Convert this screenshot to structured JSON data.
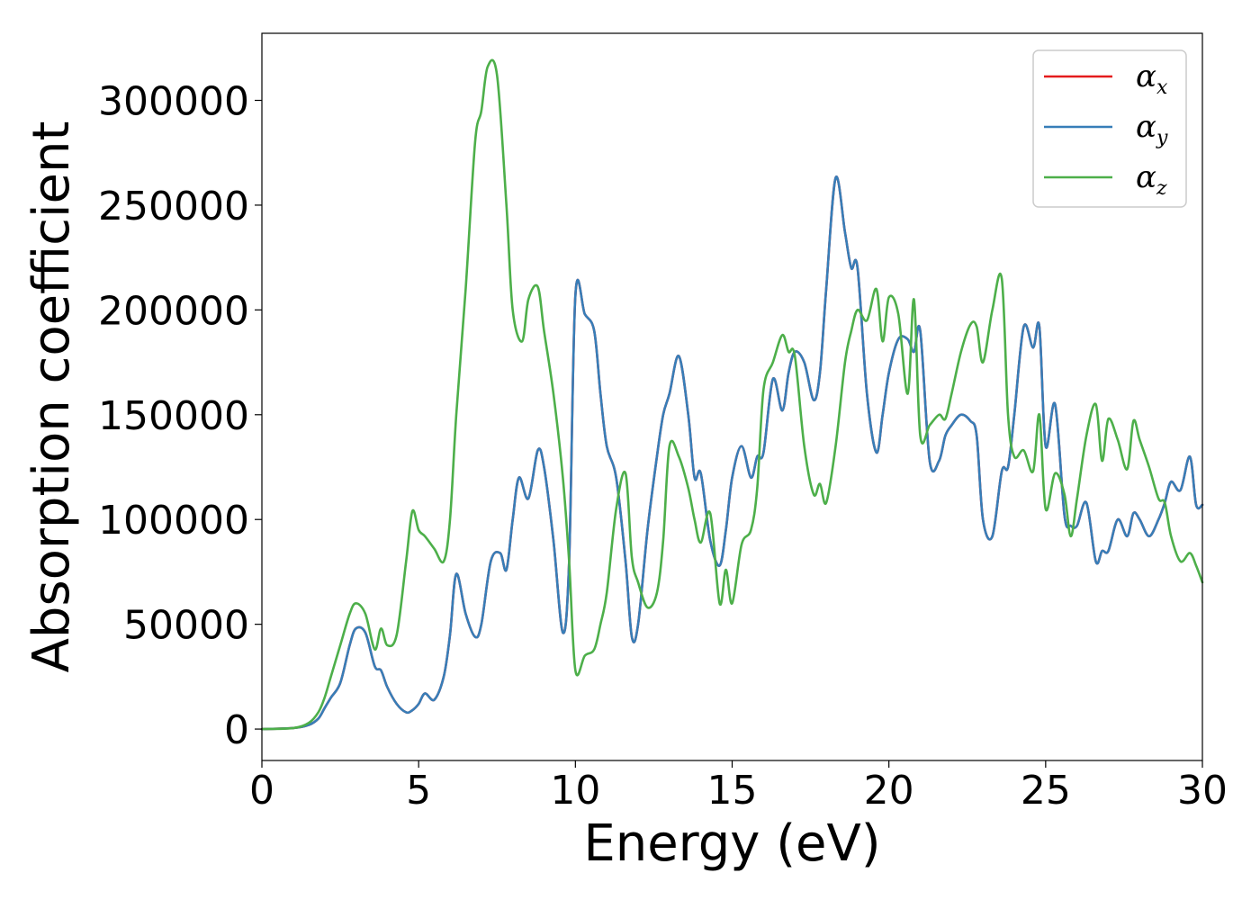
{
  "chart_data": {
    "type": "line",
    "xlabel": "Energy (eV)",
    "ylabel": "Absorption coefficient",
    "xlim": [
      0,
      30
    ],
    "ylim": [
      -15000,
      332000
    ],
    "xticks": [
      0,
      5,
      10,
      15,
      20,
      25,
      30
    ],
    "yticks": [
      0,
      50000,
      100000,
      150000,
      200000,
      250000,
      300000
    ],
    "xtick_labels": [
      "0",
      "5",
      "10",
      "15",
      "20",
      "25",
      "30"
    ],
    "ytick_labels": [
      "0",
      "50000",
      "100000",
      "150000",
      "200000",
      "250000",
      "300000"
    ],
    "grid": false,
    "legend_position": "top-right",
    "series": [
      {
        "name": "α",
        "subscript": "x",
        "color": "#e41a1c",
        "x": [
          0,
          1,
          1.5,
          1.8,
          2.0,
          2.2,
          2.5,
          2.8,
          3.0,
          3.3,
          3.6,
          3.8,
          4.0,
          4.3,
          4.6,
          4.8,
          5.0,
          5.2,
          5.5,
          5.8,
          6.0,
          6.2,
          6.5,
          6.8,
          7.0,
          7.3,
          7.6,
          7.8,
          8.0,
          8.2,
          8.5,
          8.8,
          9.0,
          9.3,
          9.6,
          9.8,
          10.0,
          10.3,
          10.6,
          10.8,
          11.0,
          11.3,
          11.6,
          11.8,
          12.0,
          12.3,
          12.6,
          12.8,
          13.0,
          13.3,
          13.6,
          13.8,
          14.0,
          14.3,
          14.6,
          14.8,
          15.0,
          15.3,
          15.6,
          15.8,
          16.0,
          16.3,
          16.6,
          16.8,
          17.0,
          17.3,
          17.6,
          17.8,
          18.0,
          18.3,
          18.6,
          18.8,
          19.0,
          19.3,
          19.6,
          19.8,
          20.0,
          20.3,
          20.6,
          20.8,
          21.0,
          21.3,
          21.6,
          21.8,
          22.0,
          22.3,
          22.6,
          22.8,
          23.0,
          23.3,
          23.6,
          23.8,
          24.0,
          24.3,
          24.6,
          24.8,
          25.0,
          25.3,
          25.6,
          25.8,
          26.0,
          26.3,
          26.6,
          26.8,
          27.0,
          27.3,
          27.6,
          27.8,
          28.0,
          28.3,
          28.6,
          28.8,
          29.0,
          29.3,
          29.6,
          29.8,
          30.0
        ],
        "y": [
          0,
          500,
          2000,
          5000,
          10000,
          15000,
          22000,
          40000,
          48000,
          46000,
          30000,
          28000,
          20000,
          12000,
          8000,
          9000,
          12000,
          17000,
          14000,
          25000,
          45000,
          74000,
          55000,
          44000,
          50000,
          80000,
          84000,
          76000,
          100000,
          120000,
          110000,
          133000,
          125000,
          90000,
          46000,
          80000,
          207000,
          198000,
          190000,
          160000,
          135000,
          120000,
          80000,
          44000,
          50000,
          95000,
          130000,
          150000,
          160000,
          178000,
          150000,
          120000,
          122000,
          90000,
          78000,
          95000,
          120000,
          135000,
          120000,
          130000,
          132000,
          167000,
          152000,
          170000,
          180000,
          175000,
          157000,
          170000,
          210000,
          263000,
          237000,
          220000,
          220000,
          160000,
          132000,
          150000,
          170000,
          186000,
          186000,
          180000,
          190000,
          128000,
          128000,
          140000,
          145000,
          150000,
          147000,
          140000,
          100000,
          92000,
          123000,
          125000,
          150000,
          192000,
          182000,
          192000,
          135000,
          155000,
          102000,
          97000,
          97000,
          108000,
          80000,
          85000,
          85000,
          100000,
          92000,
          103000,
          100000,
          92000,
          100000,
          108000,
          118000,
          114000,
          130000,
          107000,
          107000
        ]
      },
      {
        "name": "α",
        "subscript": "y",
        "color": "#377eb8",
        "x": [
          0,
          1,
          1.5,
          1.8,
          2.0,
          2.2,
          2.5,
          2.8,
          3.0,
          3.3,
          3.6,
          3.8,
          4.0,
          4.3,
          4.6,
          4.8,
          5.0,
          5.2,
          5.5,
          5.8,
          6.0,
          6.2,
          6.5,
          6.8,
          7.0,
          7.3,
          7.6,
          7.8,
          8.0,
          8.2,
          8.5,
          8.8,
          9.0,
          9.3,
          9.6,
          9.8,
          10.0,
          10.3,
          10.6,
          10.8,
          11.0,
          11.3,
          11.6,
          11.8,
          12.0,
          12.3,
          12.6,
          12.8,
          13.0,
          13.3,
          13.6,
          13.8,
          14.0,
          14.3,
          14.6,
          14.8,
          15.0,
          15.3,
          15.6,
          15.8,
          16.0,
          16.3,
          16.6,
          16.8,
          17.0,
          17.3,
          17.6,
          17.8,
          18.0,
          18.3,
          18.6,
          18.8,
          19.0,
          19.3,
          19.6,
          19.8,
          20.0,
          20.3,
          20.6,
          20.8,
          21.0,
          21.3,
          21.6,
          21.8,
          22.0,
          22.3,
          22.6,
          22.8,
          23.0,
          23.3,
          23.6,
          23.8,
          24.0,
          24.3,
          24.6,
          24.8,
          25.0,
          25.3,
          25.6,
          25.8,
          26.0,
          26.3,
          26.6,
          26.8,
          27.0,
          27.3,
          27.6,
          27.8,
          28.0,
          28.3,
          28.6,
          28.8,
          29.0,
          29.3,
          29.6,
          29.8,
          30.0
        ],
        "y": [
          0,
          500,
          2000,
          5000,
          10000,
          15000,
          22000,
          40000,
          48000,
          46000,
          30000,
          28000,
          20000,
          12000,
          8000,
          9000,
          12000,
          17000,
          14000,
          25000,
          45000,
          74000,
          55000,
          44000,
          50000,
          80000,
          84000,
          76000,
          100000,
          120000,
          110000,
          133000,
          125000,
          90000,
          46000,
          80000,
          207000,
          198000,
          190000,
          160000,
          135000,
          120000,
          80000,
          44000,
          50000,
          95000,
          130000,
          150000,
          160000,
          178000,
          150000,
          120000,
          122000,
          90000,
          78000,
          95000,
          120000,
          135000,
          120000,
          130000,
          132000,
          167000,
          152000,
          170000,
          180000,
          175000,
          157000,
          170000,
          210000,
          263000,
          237000,
          220000,
          220000,
          160000,
          132000,
          150000,
          170000,
          186000,
          186000,
          180000,
          190000,
          128000,
          128000,
          140000,
          145000,
          150000,
          147000,
          140000,
          100000,
          92000,
          123000,
          125000,
          150000,
          192000,
          182000,
          192000,
          135000,
          155000,
          102000,
          97000,
          97000,
          108000,
          80000,
          85000,
          85000,
          100000,
          92000,
          103000,
          100000,
          92000,
          100000,
          108000,
          118000,
          114000,
          130000,
          107000,
          107000
        ]
      },
      {
        "name": "α",
        "subscript": "z",
        "color": "#4daf4a",
        "x": [
          0,
          1,
          1.5,
          1.8,
          2.0,
          2.2,
          2.5,
          2.8,
          3.0,
          3.3,
          3.6,
          3.8,
          4.0,
          4.3,
          4.6,
          4.8,
          5.0,
          5.2,
          5.5,
          5.8,
          6.0,
          6.2,
          6.5,
          6.8,
          7.0,
          7.2,
          7.5,
          7.8,
          8.0,
          8.3,
          8.5,
          8.8,
          9.0,
          9.3,
          9.6,
          9.8,
          10.0,
          10.3,
          10.6,
          10.8,
          11.0,
          11.3,
          11.6,
          11.8,
          12.0,
          12.3,
          12.6,
          12.8,
          13.0,
          13.3,
          13.6,
          13.8,
          14.0,
          14.3,
          14.6,
          14.8,
          15.0,
          15.3,
          15.6,
          15.8,
          16.0,
          16.3,
          16.6,
          16.8,
          17.0,
          17.3,
          17.6,
          17.8,
          18.0,
          18.3,
          18.6,
          18.8,
          19.0,
          19.3,
          19.6,
          19.8,
          20.0,
          20.3,
          20.6,
          20.8,
          21.0,
          21.3,
          21.6,
          21.8,
          22.0,
          22.3,
          22.6,
          22.8,
          23.0,
          23.3,
          23.6,
          23.8,
          24.0,
          24.3,
          24.6,
          24.8,
          25.0,
          25.3,
          25.6,
          25.8,
          26.0,
          26.3,
          26.6,
          26.8,
          27.0,
          27.3,
          27.6,
          27.8,
          28.0,
          28.3,
          28.6,
          28.8,
          29.0,
          29.3,
          29.6,
          29.8,
          30.0
        ],
        "y": [
          0,
          500,
          3000,
          8000,
          15000,
          25000,
          40000,
          55000,
          60000,
          55000,
          38000,
          48000,
          40000,
          45000,
          80000,
          104000,
          95000,
          92000,
          86000,
          80000,
          100000,
          150000,
          210000,
          280000,
          295000,
          316000,
          312000,
          250000,
          200000,
          185000,
          205000,
          211000,
          190000,
          160000,
          120000,
          80000,
          28000,
          35000,
          38000,
          50000,
          65000,
          105000,
          122000,
          82000,
          70000,
          58000,
          65000,
          90000,
          135000,
          130000,
          115000,
          100000,
          89000,
          103000,
          60000,
          76000,
          60000,
          88000,
          95000,
          115000,
          162000,
          175000,
          188000,
          180000,
          178000,
          135000,
          112000,
          117000,
          108000,
          135000,
          175000,
          190000,
          200000,
          195000,
          210000,
          185000,
          206000,
          198000,
          160000,
          205000,
          140000,
          145000,
          150000,
          148000,
          160000,
          180000,
          193000,
          192000,
          175000,
          200000,
          215000,
          150000,
          130000,
          133000,
          123000,
          150000,
          105000,
          122000,
          112000,
          92000,
          110000,
          140000,
          155000,
          128000,
          148000,
          138000,
          124000,
          147000,
          138000,
          125000,
          110000,
          108000,
          92000,
          80000,
          84000,
          78000,
          70000
        ]
      }
    ]
  }
}
